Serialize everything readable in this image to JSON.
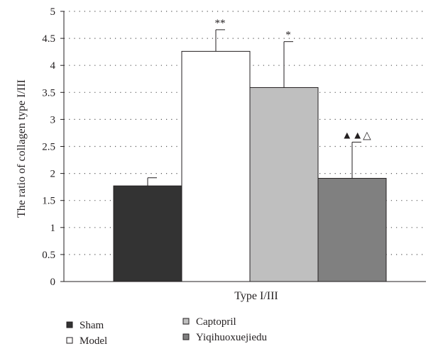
{
  "chart_data": {
    "type": "bar",
    "title": "",
    "xlabel": "Type I/III",
    "ylabel": "The ratio of collagen type I/III",
    "ylim": [
      0,
      5
    ],
    "yticks": [
      0,
      0.5,
      1,
      1.5,
      2,
      2.5,
      3,
      3.5,
      4,
      4.5,
      5
    ],
    "ytick_labels": [
      "0",
      "0.5",
      "1",
      "1.5",
      "2",
      "2.5",
      "3",
      "3.5",
      "4",
      "4.5",
      "5"
    ],
    "grid": "dotted horizontal",
    "legend_position": "bottom-left",
    "categories": [
      "Type I/III"
    ],
    "series": [
      {
        "name": "Sham",
        "values": [
          1.77
        ],
        "error": [
          0.15
        ],
        "color": "#333333",
        "annotation": ""
      },
      {
        "name": "Model",
        "values": [
          4.26
        ],
        "error": [
          0.4
        ],
        "color": "#ffffff",
        "annotation": "**"
      },
      {
        "name": "Captopril",
        "values": [
          3.59
        ],
        "error": [
          0.85
        ],
        "color": "#bfbfbf",
        "annotation": "*"
      },
      {
        "name": "Yiqihuoxuejiedu",
        "values": [
          1.91
        ],
        "error": [
          0.67
        ],
        "color": "#808080",
        "annotation": "▲▲△"
      }
    ]
  }
}
